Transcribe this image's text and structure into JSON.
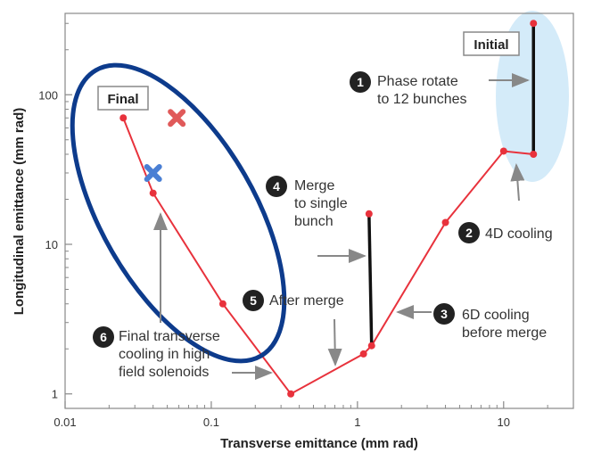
{
  "chart_data": {
    "type": "line",
    "xlabel": "Transverse emittance (mm rad)",
    "ylabel": "Longitudinal emittance (mm rad)",
    "xscale": "log",
    "yscale": "log",
    "xlim": [
      0.01,
      30
    ],
    "ylim": [
      0.8,
      350
    ],
    "x_tick_labels": [
      "0.01",
      "0.1",
      "1",
      "10"
    ],
    "x_ticks": [
      0.01,
      0.1,
      1,
      10
    ],
    "y_tick_labels": [
      "1",
      "10",
      "100"
    ],
    "y_ticks": [
      1,
      10,
      100
    ],
    "colors": {
      "line": "#e8323c",
      "merge_line": "#111111",
      "final_ellipse": "#0d3b8c",
      "initial_ellipse": "#cfe8f8"
    },
    "series": [
      {
        "x": [
          16,
          16,
          10,
          4,
          1.25,
          1.1,
          0.35,
          0.12,
          0.04,
          0.025
        ],
        "y": [
          300,
          40,
          42,
          14,
          2.1,
          1.85,
          1.0,
          4.0,
          22,
          70
        ]
      }
    ],
    "merge_segment": {
      "x": [
        1.2,
        1.25
      ],
      "y": [
        16,
        2.1
      ]
    },
    "initial_segment": {
      "x": [
        16,
        16
      ],
      "y": [
        300,
        40
      ]
    },
    "markers": [
      {
        "label": "red-x",
        "x": 0.058,
        "y": 70,
        "color": "#e05a5a"
      },
      {
        "label": "blue-x",
        "x": 0.04,
        "y": 30,
        "color": "#4a7fd4"
      }
    ],
    "boxes": [
      {
        "id": "initial",
        "text": "Initial"
      },
      {
        "id": "final",
        "text": "Final"
      }
    ],
    "annotations": [
      {
        "num": "1",
        "lines": [
          "Phase rotate",
          "to 12 bunches"
        ]
      },
      {
        "num": "2",
        "lines": [
          "4D cooling"
        ]
      },
      {
        "num": "3",
        "lines": [
          "6D cooling",
          "before merge"
        ]
      },
      {
        "num": "4",
        "lines": [
          "Merge",
          "to single",
          "bunch"
        ]
      },
      {
        "num": "5",
        "lines": [
          "After merge"
        ]
      },
      {
        "num": "6",
        "lines": [
          "Final transverse",
          "cooling in high",
          "field solenoids"
        ]
      }
    ]
  }
}
